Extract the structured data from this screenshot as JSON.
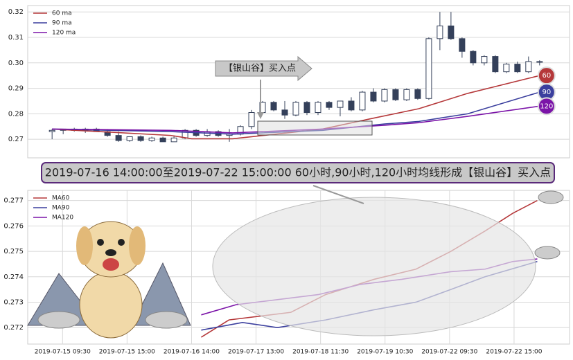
{
  "chart_data": [
    {
      "type": "candlestick",
      "x": [
        0,
        1,
        2,
        3,
        4,
        5,
        6,
        7,
        8,
        9,
        10,
        11,
        12,
        13,
        14,
        15,
        16,
        17,
        18,
        19,
        20,
        21,
        22,
        23,
        24,
        25,
        26,
        27,
        28,
        29,
        30,
        31,
        32,
        33,
        34,
        35,
        36,
        37,
        38,
        39,
        40,
        41,
        42,
        43,
        44
      ],
      "open": [
        0.273,
        0.2735,
        0.274,
        0.2735,
        0.274,
        0.273,
        0.2715,
        0.2695,
        0.271,
        0.2695,
        0.2705,
        0.269,
        0.2705,
        0.2735,
        0.2715,
        0.273,
        0.2715,
        0.272,
        0.275,
        0.2805,
        0.2845,
        0.2815,
        0.2795,
        0.2845,
        0.2805,
        0.2845,
        0.2825,
        0.285,
        0.2815,
        0.2885,
        0.285,
        0.2895,
        0.2855,
        0.2895,
        0.286,
        0.3095,
        0.3145,
        0.3095,
        0.3045,
        0.3,
        0.3025,
        0.2965,
        0.2995,
        0.2965,
        0.3005
      ],
      "high": [
        0.274,
        0.274,
        0.2745,
        0.2745,
        0.2745,
        0.274,
        0.273,
        0.271,
        0.2715,
        0.271,
        0.271,
        0.2715,
        0.274,
        0.274,
        0.274,
        0.2735,
        0.274,
        0.2755,
        0.2815,
        0.285,
        0.285,
        0.285,
        0.285,
        0.285,
        0.285,
        0.285,
        0.285,
        0.2865,
        0.289,
        0.29,
        0.29,
        0.29,
        0.29,
        0.29,
        0.31,
        0.32,
        0.32,
        0.31,
        0.305,
        0.303,
        0.303,
        0.3,
        0.3005,
        0.3025,
        0.301
      ],
      "low": [
        0.27,
        0.272,
        0.273,
        0.2725,
        0.273,
        0.271,
        0.269,
        0.269,
        0.269,
        0.269,
        0.269,
        0.269,
        0.27,
        0.271,
        0.271,
        0.271,
        0.269,
        0.2715,
        0.274,
        0.28,
        0.281,
        0.278,
        0.279,
        0.2795,
        0.2795,
        0.2815,
        0.279,
        0.281,
        0.281,
        0.2845,
        0.2845,
        0.285,
        0.285,
        0.2855,
        0.2855,
        0.305,
        0.309,
        0.302,
        0.299,
        0.299,
        0.296,
        0.296,
        0.296,
        0.296,
        0.299
      ],
      "close": [
        0.2735,
        0.274,
        0.2735,
        0.274,
        0.273,
        0.2715,
        0.2695,
        0.271,
        0.2695,
        0.2705,
        0.269,
        0.2705,
        0.2735,
        0.2715,
        0.273,
        0.2715,
        0.272,
        0.275,
        0.2805,
        0.2845,
        0.2815,
        0.2795,
        0.2845,
        0.2805,
        0.2845,
        0.2825,
        0.285,
        0.2815,
        0.2885,
        0.285,
        0.2895,
        0.2855,
        0.2895,
        0.286,
        0.3095,
        0.3145,
        0.3095,
        0.3045,
        0.3,
        0.3025,
        0.2965,
        0.2995,
        0.2965,
        0.3005,
        0.3005
      ],
      "candle_color": "#34405a",
      "series": [
        {
          "name": "60 ma",
          "color": "#b5383a",
          "x": [
            0,
            10.7,
            12.6,
            16.3,
            24.4,
            28.7,
            33.1,
            37.5,
            44
          ],
          "values": [
            0.274,
            0.2715,
            0.2702,
            0.2702,
            0.274,
            0.278,
            0.282,
            0.288,
            0.295
          ]
        },
        {
          "name": "90 ma",
          "color": "#3b3f9e",
          "x": [
            0,
            10.7,
            16.3,
            24.4,
            30,
            33.1,
            37.5,
            44
          ],
          "values": [
            0.274,
            0.273,
            0.272,
            0.2735,
            0.276,
            0.277,
            0.28,
            0.2885
          ]
        },
        {
          "name": "120 ma",
          "color": "#7b14a8",
          "x": [
            0,
            10.7,
            16.3,
            24.4,
            30,
            33.1,
            37.5,
            44
          ],
          "values": [
            0.274,
            0.2735,
            0.2725,
            0.274,
            0.2755,
            0.2765,
            0.279,
            0.283
          ]
        }
      ],
      "end_labels": [
        "60",
        "90",
        "120"
      ],
      "annotations": [
        "【银山谷】买入点",
        "2019-07-16 14:00:00至2019-07-22 15:00:00 60小时,90小时,120小时均线形成【银山谷】买入点"
      ],
      "xlim": [
        -2.2,
        46.7
      ],
      "ylim": [
        0.2627,
        0.3225
      ],
      "yticks": [
        0.27,
        0.28,
        0.29,
        {
          "value": 0.3,
          "label": "0.30"
        },
        0.31,
        0.32
      ],
      "grid": true,
      "legend": "upper left"
    },
    {
      "type": "line",
      "series": [
        {
          "name": "MA60",
          "color": "#b5383a",
          "x": [
            2.15,
            2.58,
            3.54,
            4.08,
            4.83,
            5.48,
            6.02,
            6.55,
            6.98,
            7.36
          ],
          "values": [
            0.27162,
            0.2723,
            0.2726,
            0.2733,
            0.2739,
            0.2743,
            0.275,
            0.2758,
            0.2765,
            0.277
          ]
        },
        {
          "name": "MA90",
          "color": "#3b3f9e",
          "x": [
            2.15,
            2.79,
            3.33,
            4.08,
            4.83,
            5.48,
            6.02,
            6.55,
            7.36
          ],
          "values": [
            0.2719,
            0.2722,
            0.272,
            0.2723,
            0.2727,
            0.273,
            0.2735,
            0.274,
            0.2746
          ]
        },
        {
          "name": "MA120",
          "color": "#7b14a8",
          "x": [
            2.15,
            2.69,
            3.33,
            3.97,
            4.62,
            5.26,
            6.02,
            6.55,
            6.98,
            7.36
          ],
          "values": [
            0.2725,
            0.2729,
            0.2731,
            0.2733,
            0.2737,
            0.2739,
            0.2742,
            0.2743,
            0.2746,
            0.2747
          ]
        }
      ],
      "xlim": [
        -0.54,
        7.86
      ],
      "xticks": [
        {
          "value": 0,
          "label": "2019-07-15 09:30"
        },
        {
          "value": 1,
          "label": "2019-07-15 15:00"
        },
        {
          "value": 2,
          "label": "2019-07-16 14:00"
        },
        {
          "value": 3,
          "label": "2019-07-17 13:00"
        },
        {
          "value": 4,
          "label": "2019-07-18 11:30"
        },
        {
          "value": 5,
          "label": "2019-07-19 10:30"
        },
        {
          "value": 6,
          "label": "2019-07-22 09:30"
        },
        {
          "value": 7,
          "label": "2019-07-22 15:00"
        }
      ],
      "ylim": [
        0.27135,
        0.2774
      ],
      "yticks": [
        0.272,
        0.273,
        0.274,
        0.275,
        0.276,
        0.277
      ],
      "grid": true,
      "legend": "upper left"
    }
  ]
}
